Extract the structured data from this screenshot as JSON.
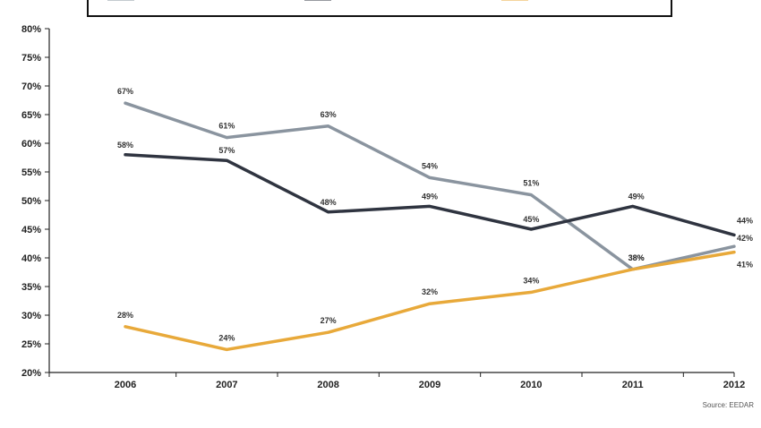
{
  "chart_data": {
    "type": "line",
    "title": "",
    "xlabel": "",
    "ylabel": "",
    "x": [
      "2006",
      "2007",
      "2008",
      "2009",
      "2010",
      "2011",
      "2012"
    ],
    "ylim": [
      20,
      80
    ],
    "yticks": [
      "20%",
      "25%",
      "30%",
      "35%",
      "40%",
      "45%",
      "50%",
      "55%",
      "60%",
      "65%",
      "70%",
      "75%",
      "80%"
    ],
    "ytick_values": [
      20,
      25,
      30,
      35,
      40,
      45,
      50,
      55,
      60,
      65,
      70,
      75,
      80
    ],
    "grid": false,
    "legend": "top (labels cropped)",
    "series": [
      {
        "color": "#8a949f",
        "values": [
          67,
          61,
          63,
          54,
          51,
          38,
          42
        ],
        "labels": [
          "67%",
          "61%",
          "63%",
          "54%",
          "51%",
          "38%",
          "42%"
        ]
      },
      {
        "color": "#2f3440",
        "values": [
          58,
          57,
          48,
          49,
          45,
          49,
          44
        ],
        "labels": [
          "58%",
          "57%",
          "48%",
          "49%",
          "45%",
          "49%",
          "44%"
        ]
      },
      {
        "color": "#e8a93a",
        "values": [
          28,
          24,
          27,
          32,
          34,
          38,
          41
        ],
        "labels": [
          "28%",
          "24%",
          "27%",
          "32%",
          "34%",
          "38%",
          "41%"
        ]
      }
    ],
    "source": "Source: EEDAR"
  }
}
